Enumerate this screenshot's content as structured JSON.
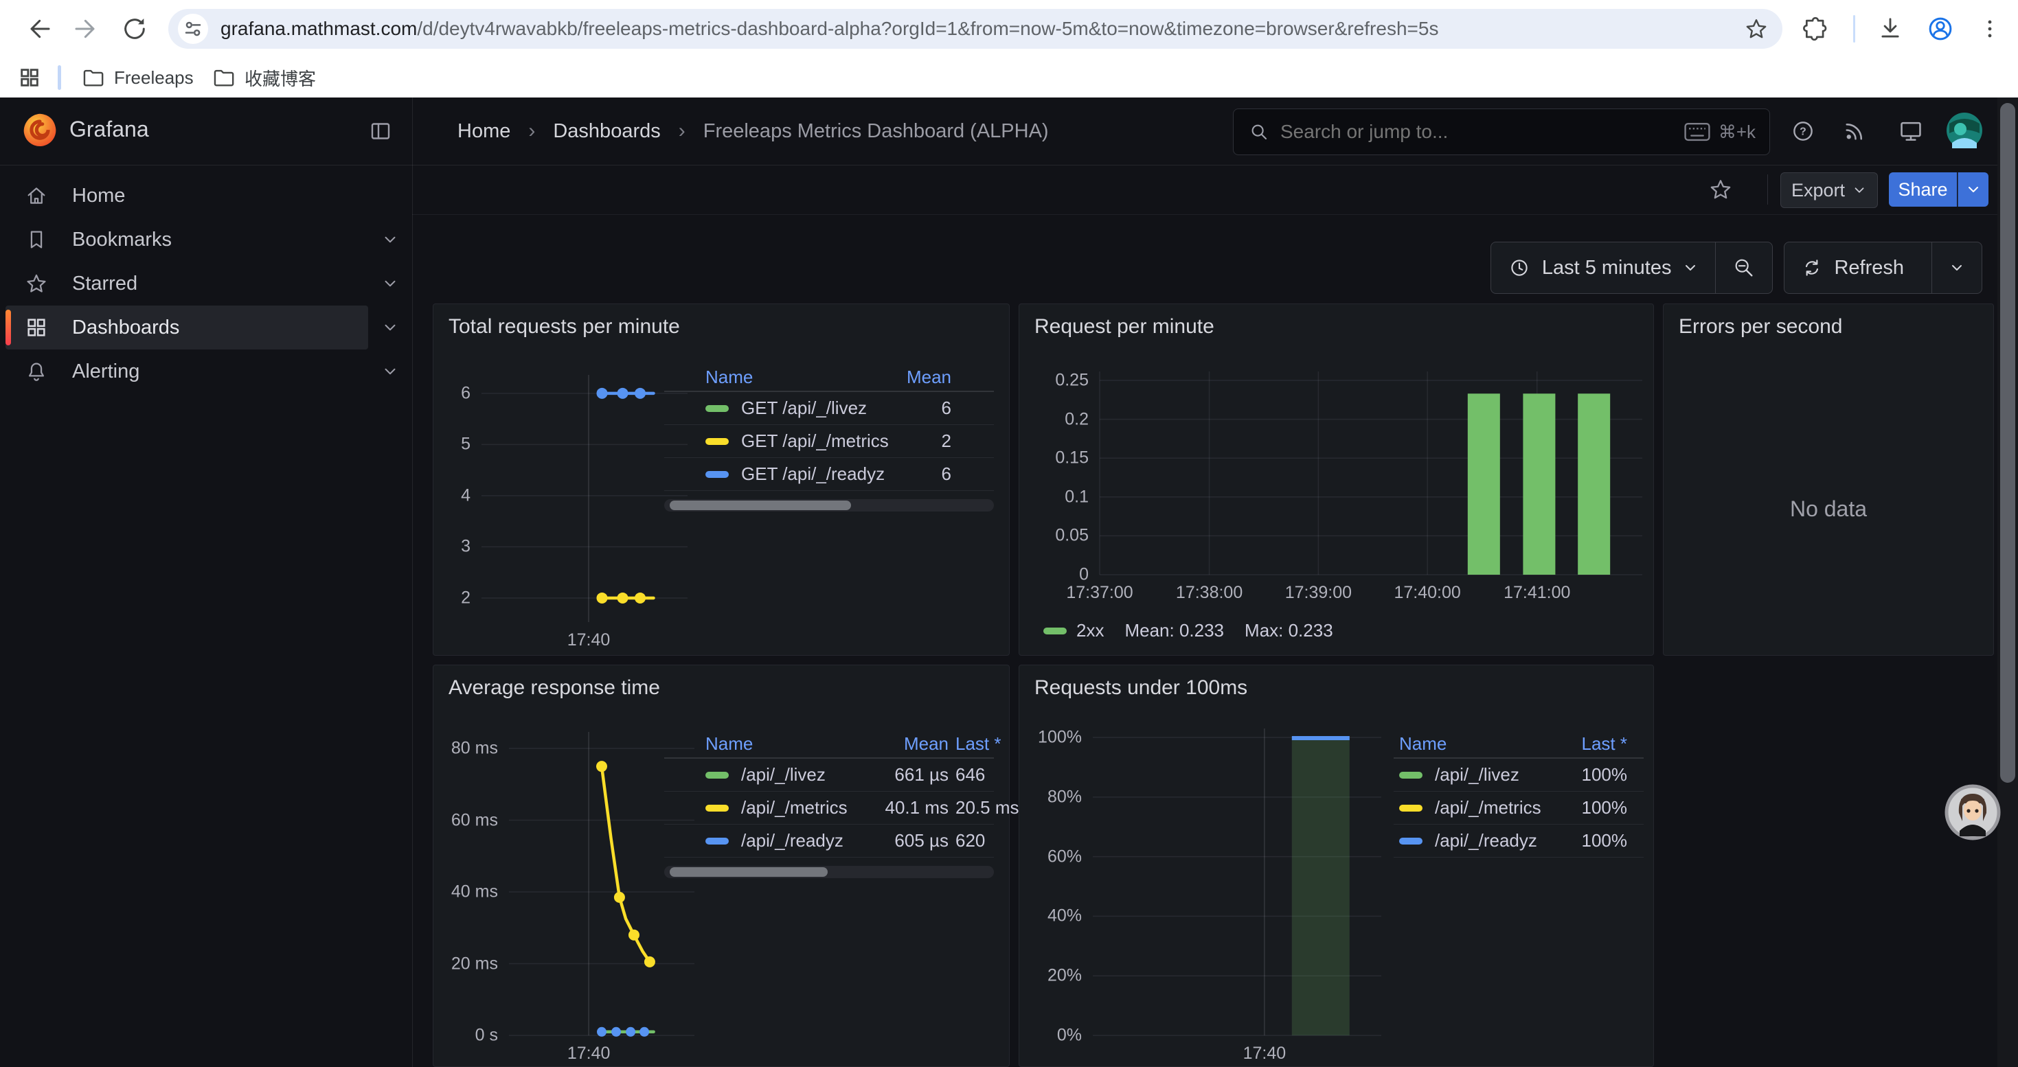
{
  "colors": {
    "accent_blue": "#3d71d9",
    "series_green": "#73BF69",
    "series_yellow": "#FADE2A",
    "series_blue": "#5794F2"
  },
  "browser": {
    "url_host": "grafana.mathmast.com",
    "url_rest": "/d/deytv4rwavabkb/freeleaps-metrics-dashboard-alpha?orgId=1&from=now-5m&to=now&timezone=browser&refresh=5s",
    "bookmarks": [
      {
        "label": "Freeleaps"
      },
      {
        "label": "收藏博客"
      }
    ]
  },
  "app": {
    "brand": "Grafana",
    "breadcrumb": [
      {
        "label": "Home"
      },
      {
        "label": "Dashboards"
      },
      {
        "label": "Freeleaps Metrics Dashboard (ALPHA)"
      }
    ],
    "search": {
      "placeholder": "Search or jump to...",
      "shortcut": "⌘+k"
    },
    "toolbar": {
      "export_label": "Export",
      "share_label": "Share"
    },
    "time": {
      "range_label": "Last 5 minutes",
      "refresh_label": "Refresh"
    }
  },
  "sidebar": {
    "items": [
      {
        "label": "Home",
        "icon": "home",
        "expandable": false,
        "active": false
      },
      {
        "label": "Bookmarks",
        "icon": "bookmark",
        "expandable": true,
        "active": false
      },
      {
        "label": "Starred",
        "icon": "star",
        "expandable": true,
        "active": false
      },
      {
        "label": "Dashboards",
        "icon": "apps",
        "expandable": true,
        "active": true
      },
      {
        "label": "Alerting",
        "icon": "bell",
        "expandable": true,
        "active": false
      }
    ]
  },
  "panels": [
    {
      "title": "Total requests per minute",
      "chart_data": {
        "type": "line",
        "y_min": 1.53,
        "y_max": 6.36,
        "y_ticks": [
          {
            "v": 6,
            "label": "6"
          },
          {
            "v": 5,
            "label": "5"
          },
          {
            "v": 4,
            "label": "4"
          },
          {
            "v": 3,
            "label": "3"
          },
          {
            "v": 2,
            "label": "2"
          }
        ],
        "x_ticks": [
          {
            "f": 0.52,
            "label": "17:40",
            "grid": true,
            "strong": true
          }
        ],
        "series": [
          {
            "name": "GET /api/_/readyz",
            "color": "#5794F2",
            "points": [
              [
                0.585,
                6
              ],
              [
                0.685,
                6
              ],
              [
                0.77,
                6
              ],
              [
                0.835,
                6
              ]
            ],
            "dots": [
              [
                0.585,
                6
              ],
              [
                0.685,
                6
              ],
              [
                0.77,
                6
              ]
            ]
          },
          {
            "name": "GET /api/_/metrics",
            "color": "#FADE2A",
            "points": [
              [
                0.585,
                2
              ],
              [
                0.685,
                2
              ],
              [
                0.77,
                2
              ],
              [
                0.835,
                2
              ]
            ],
            "dots": [
              [
                0.585,
                2
              ],
              [
                0.685,
                2
              ],
              [
                0.77,
                2
              ]
            ]
          }
        ]
      },
      "table": {
        "headers": [
          "Name",
          "Mean"
        ],
        "rows": [
          {
            "color": "#73BF69",
            "name": "GET /api/_/livez",
            "mean": "6"
          },
          {
            "color": "#FADE2A",
            "name": "GET /api/_/metrics",
            "mean": "2"
          },
          {
            "color": "#5794F2",
            "name": "GET /api/_/readyz",
            "mean": "6"
          }
        ]
      }
    },
    {
      "title": "Request per minute",
      "chart_data": {
        "type": "bar",
        "y_min": 0,
        "y_max": 0.2615,
        "y_ticks": [
          {
            "v": 0.25,
            "label": "0.25"
          },
          {
            "v": 0.2,
            "label": "0.2"
          },
          {
            "v": 0.15,
            "label": "0.15"
          },
          {
            "v": 0.1,
            "label": "0.1"
          },
          {
            "v": 0.05,
            "label": "0.05"
          },
          {
            "v": 0,
            "label": "0"
          }
        ],
        "x_ticks": [
          {
            "f": 0.0,
            "label": "17:37:00",
            "grid": true
          },
          {
            "f": 0.202,
            "label": "17:38:00",
            "grid": true
          },
          {
            "f": 0.403,
            "label": "17:39:00",
            "grid": true
          },
          {
            "f": 0.604,
            "label": "17:40:00",
            "grid": true
          },
          {
            "f": 0.806,
            "label": "17:41:00",
            "grid": true
          }
        ],
        "bar_color": "#73BF69",
        "bars": [
          {
            "x": 0.708,
            "w": 0.0595,
            "v": 0.233
          },
          {
            "x": 0.81,
            "w": 0.0595,
            "v": 0.233
          },
          {
            "x": 0.911,
            "w": 0.0595,
            "v": 0.233
          }
        ]
      },
      "legend": {
        "color": "#73BF69",
        "label": "2xx",
        "mean": "Mean: 0.233",
        "max": "Max: 0.233"
      }
    },
    {
      "title": "Errors per second",
      "no_data": "No data"
    },
    {
      "title": "Average response time",
      "chart_data": {
        "type": "line",
        "y_min": 0,
        "y_max": 84.6,
        "y_ticks": [
          {
            "v": 80,
            "label": "80 ms"
          },
          {
            "v": 60,
            "label": "60 ms"
          },
          {
            "v": 40,
            "label": "40 ms"
          },
          {
            "v": 20,
            "label": "20 ms"
          },
          {
            "v": 0,
            "label": "0 s"
          }
        ],
        "x_ticks": [
          {
            "f": 0.43,
            "label": "17:40",
            "grid": true,
            "strong": true
          }
        ],
        "series": [
          {
            "name": "/api/_/metrics",
            "color": "#FADE2A",
            "points": [
              [
                0.5,
                75
              ],
              [
                0.55,
                55
              ],
              [
                0.596,
                38.5
              ],
              [
                0.63,
                32.5
              ],
              [
                0.674,
                28
              ],
              [
                0.72,
                23.5
              ],
              [
                0.759,
                20.5
              ]
            ],
            "dots": [
              [
                0.5,
                75
              ],
              [
                0.596,
                38.5
              ],
              [
                0.674,
                28
              ],
              [
                0.759,
                20.5
              ]
            ]
          },
          {
            "name": "/api/_/livez",
            "color": "#73BF69",
            "points": [
              [
                0.49,
                1
              ],
              [
                0.78,
                1
              ]
            ],
            "dots": []
          },
          {
            "name": "/api/_/readyz",
            "color": "#5794F2",
            "points": [],
            "dots": [
              [
                0.5,
                1
              ],
              [
                0.578,
                1
              ],
              [
                0.656,
                1
              ],
              [
                0.73,
                1
              ]
            ],
            "dot_r": 7
          }
        ]
      },
      "table": {
        "headers": [
          "Name",
          "Mean",
          "Last *"
        ],
        "rows": [
          {
            "color": "#73BF69",
            "name": "/api/_/livez",
            "mean": "661 µs",
            "last": "646"
          },
          {
            "color": "#FADE2A",
            "name": "/api/_/metrics",
            "mean": "40.1 ms",
            "last": "20.5 ms"
          },
          {
            "color": "#5794F2",
            "name": "/api/_/readyz",
            "mean": "605 µs",
            "last": "620"
          }
        ]
      }
    },
    {
      "title": "Requests under 100ms",
      "chart_data": {
        "type": "bar",
        "y_min": 0,
        "y_max": 103,
        "y_ticks": [
          {
            "v": 100,
            "label": "100%"
          },
          {
            "v": 80,
            "label": "80%"
          },
          {
            "v": 60,
            "label": "60%"
          },
          {
            "v": 40,
            "label": "40%"
          },
          {
            "v": 20,
            "label": "20%"
          },
          {
            "v": 0,
            "label": "0%"
          }
        ],
        "x_ticks": [
          {
            "f": 0.595,
            "label": "17:40",
            "grid": true,
            "strong": true
          }
        ],
        "bars": [
          {
            "x": 0.79,
            "w": 0.2,
            "v": 100,
            "color": "rgba(115,191,105,0.20)",
            "cap": "#5794F2"
          }
        ]
      },
      "table": {
        "headers": [
          "Name",
          "Last *"
        ],
        "rows": [
          {
            "color": "#73BF69",
            "name": "/api/_/livez",
            "last": "100%"
          },
          {
            "color": "#FADE2A",
            "name": "/api/_/metrics",
            "last": "100%"
          },
          {
            "color": "#5794F2",
            "name": "/api/_/readyz",
            "last": "100%"
          }
        ]
      }
    }
  ]
}
